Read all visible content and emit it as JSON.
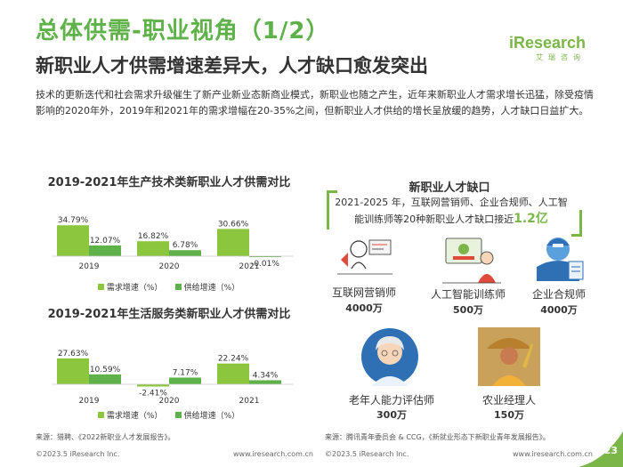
{
  "header": {
    "title": "总体供需-职业视角（1/2）",
    "subtitle": "新职业人才供需增速差异大，人才缺口愈发突出",
    "logo_main": "iResearch",
    "logo_sub": "艾瑞咨询"
  },
  "intro": "技术的更新迭代和社会需求升级催生了新产业新业态新商业模式，新职业也随之产生，近年来新职业人才需求增长迅猛，除受疫情影响的2020年外，2019年和2021年的需求增幅在20-35%之间，但新职业人才供给的增长呈放缓的趋势，人才缺口日益扩大。",
  "chart_data": [
    {
      "type": "bar",
      "title": "2019-2021年生产技术类新职业人才供需对比",
      "categories": [
        "2019",
        "2020",
        "2021"
      ],
      "series": [
        {
          "name": "需求增速（%）",
          "values": [
            34.79,
            16.82,
            30.66
          ],
          "labels": [
            "34.79%",
            "16.82%",
            "30.66%"
          ]
        },
        {
          "name": "供给增速（%）",
          "values": [
            12.07,
            6.78,
            -0.01
          ],
          "labels": [
            "12.07%",
            "6.78%",
            "-0.01%"
          ]
        }
      ],
      "ylim": [
        -3,
        36
      ]
    },
    {
      "type": "bar",
      "title": "2019-2021年生活服务类新职业人才供需对比",
      "categories": [
        "2019",
        "2020",
        "2021"
      ],
      "series": [
        {
          "name": "需求增速（%）",
          "values": [
            27.63,
            -2.41,
            22.24
          ],
          "labels": [
            "27.63%",
            "-2.41%",
            "22.24%"
          ]
        },
        {
          "name": "供给增速（%）",
          "values": [
            10.59,
            7.17,
            4.34
          ],
          "labels": [
            "10.59%",
            "7.17%",
            "4.34%"
          ]
        }
      ],
      "ylim": [
        -3,
        36
      ]
    }
  ],
  "colors": {
    "demand": "#8cc63f",
    "supply": "#5fb14a",
    "accent": "#7ab648",
    "title_green": "#5fb14a"
  },
  "gap": {
    "title": "新职业人才缺口",
    "text_prefix": "2021-2025 年，互联网营销师、企业合规师、人工智能训练师等20种新职业人才缺口接近",
    "highlight": "1.2亿",
    "roles": [
      {
        "name": "互联网营销师",
        "value": "4000万",
        "icon": "marketing-icon"
      },
      {
        "name": "人工智能训练师",
        "value": "500万",
        "icon": "ai-trainer-icon"
      },
      {
        "name": "企业合规师",
        "value": "4000万",
        "icon": "compliance-icon"
      },
      {
        "name": "老年人能力评估师",
        "value": "300万",
        "icon": "elderly-icon"
      },
      {
        "name": "农业经理人",
        "value": "150万",
        "icon": "farmer-icon"
      }
    ]
  },
  "sources": {
    "left": "来源：猎聘、《2022新职业人才发展报告》。",
    "right": "来源：腾讯青年委员会 & CCG，《新就业形态下新职业青年发展报告》。"
  },
  "footer": {
    "left_copy": "©2023.5 iResearch Inc.",
    "left_url": "www.iresearch.com.cn",
    "right_copy": "©2023.5 iResearch Inc.",
    "right_url": "www.iresearch.com.cn",
    "page": "23"
  }
}
